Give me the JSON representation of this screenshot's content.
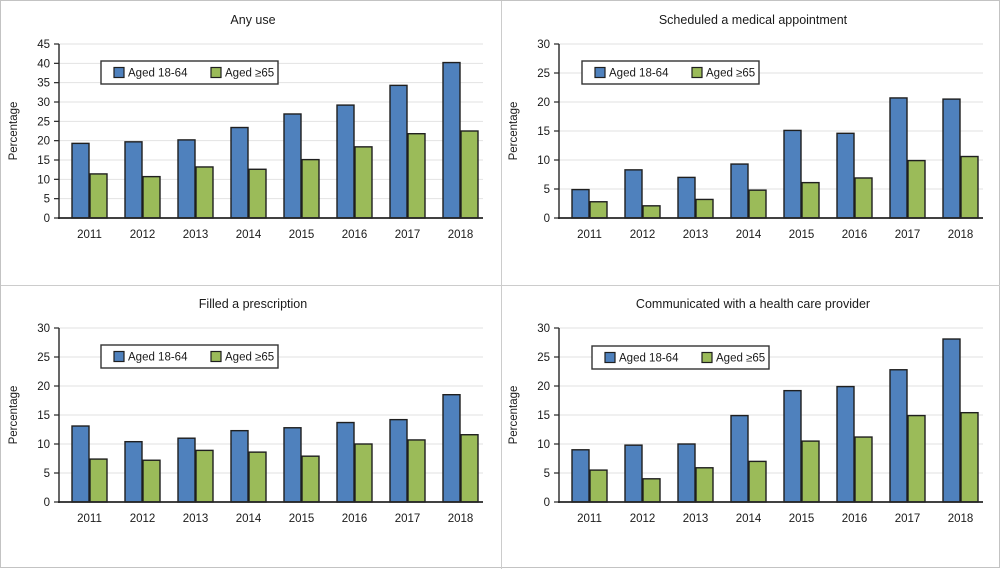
{
  "figure": {
    "description": "Four-panel bar chart figure comparing telehealth-related activity by age group, 2011-2018",
    "panel_titles": [
      "Any use",
      "Scheduled a medical appointment",
      "Filled a prescription",
      "Communicated with a health care provider"
    ]
  },
  "theme": {
    "background": "#ffffff",
    "outer_border": "#c3c3c3",
    "divider_color": "#cccccc",
    "grid_color": "#e2e2e2",
    "axis_color": "#262626",
    "bar_border": "#1f1f1f",
    "legend_border": "#333333",
    "text_color": "#1a1a1a",
    "series_blue": "#4F81BD",
    "series_green": "#9BBB59"
  },
  "legend": {
    "items": [
      {
        "label": "Aged 18-64",
        "color": "#4F81BD"
      },
      {
        "label": "Aged ≥65",
        "color": "#9BBB59"
      }
    ]
  },
  "chart_data": [
    {
      "type": "bar",
      "title": "Any use",
      "xlabel": "",
      "ylabel": "Percentage",
      "ylim": [
        0,
        45
      ],
      "ytick_step": 5,
      "grid": true,
      "legend_position": "inside-top-left",
      "categories": [
        "2011",
        "2012",
        "2013",
        "2014",
        "2015",
        "2016",
        "2017",
        "2018"
      ],
      "series": [
        {
          "name": "Aged 18-64",
          "color": "#4F81BD",
          "values": [
            19.3,
            19.7,
            20.2,
            23.4,
            26.9,
            29.2,
            34.3,
            40.2
          ]
        },
        {
          "name": "Aged ≥65",
          "color": "#9BBB59",
          "values": [
            11.4,
            10.7,
            13.2,
            12.6,
            15.1,
            18.4,
            21.8,
            22.5
          ]
        }
      ]
    },
    {
      "type": "bar",
      "title": "Scheduled a medical appointment",
      "xlabel": "",
      "ylabel": "Percentage",
      "ylim": [
        0,
        30
      ],
      "ytick_step": 5,
      "grid": true,
      "legend_position": "inside-top-left",
      "categories": [
        "2011",
        "2012",
        "2013",
        "2014",
        "2015",
        "2016",
        "2017",
        "2018"
      ],
      "series": [
        {
          "name": "Aged 18-64",
          "color": "#4F81BD",
          "values": [
            4.9,
            8.3,
            7.0,
            9.3,
            15.1,
            14.6,
            20.7,
            20.5
          ]
        },
        {
          "name": "Aged ≥65",
          "color": "#9BBB59",
          "values": [
            2.8,
            2.1,
            3.2,
            4.8,
            6.1,
            6.9,
            9.9,
            10.6
          ]
        }
      ]
    },
    {
      "type": "bar",
      "title": "Filled a prescription",
      "xlabel": "",
      "ylabel": "Percentage",
      "ylim": [
        0,
        30
      ],
      "ytick_step": 5,
      "grid": true,
      "legend_position": "inside-top-left",
      "categories": [
        "2011",
        "2012",
        "2013",
        "2014",
        "2015",
        "2016",
        "2017",
        "2018"
      ],
      "series": [
        {
          "name": "Aged 18-64",
          "color": "#4F81BD",
          "values": [
            13.1,
            10.4,
            11.0,
            12.3,
            12.8,
            13.7,
            14.2,
            18.5
          ]
        },
        {
          "name": "Aged ≥65",
          "color": "#9BBB59",
          "values": [
            7.4,
            7.2,
            8.9,
            8.6,
            7.9,
            10.0,
            10.7,
            11.6
          ]
        }
      ]
    },
    {
      "type": "bar",
      "title": "Communicated with a health care provider",
      "xlabel": "",
      "ylabel": "Percentage",
      "ylim": [
        0,
        30
      ],
      "ytick_step": 5,
      "grid": true,
      "legend_position": "inside-top-left",
      "categories": [
        "2011",
        "2012",
        "2013",
        "2014",
        "2015",
        "2016",
        "2017",
        "2018"
      ],
      "series": [
        {
          "name": "Aged 18-64",
          "color": "#4F81BD",
          "values": [
            9.0,
            9.8,
            10.0,
            14.9,
            19.2,
            19.9,
            22.8,
            28.1
          ]
        },
        {
          "name": "Aged ≥65",
          "color": "#9BBB59",
          "values": [
            5.5,
            4.0,
            5.9,
            7.0,
            10.5,
            11.2,
            14.9,
            15.4
          ]
        }
      ]
    }
  ]
}
